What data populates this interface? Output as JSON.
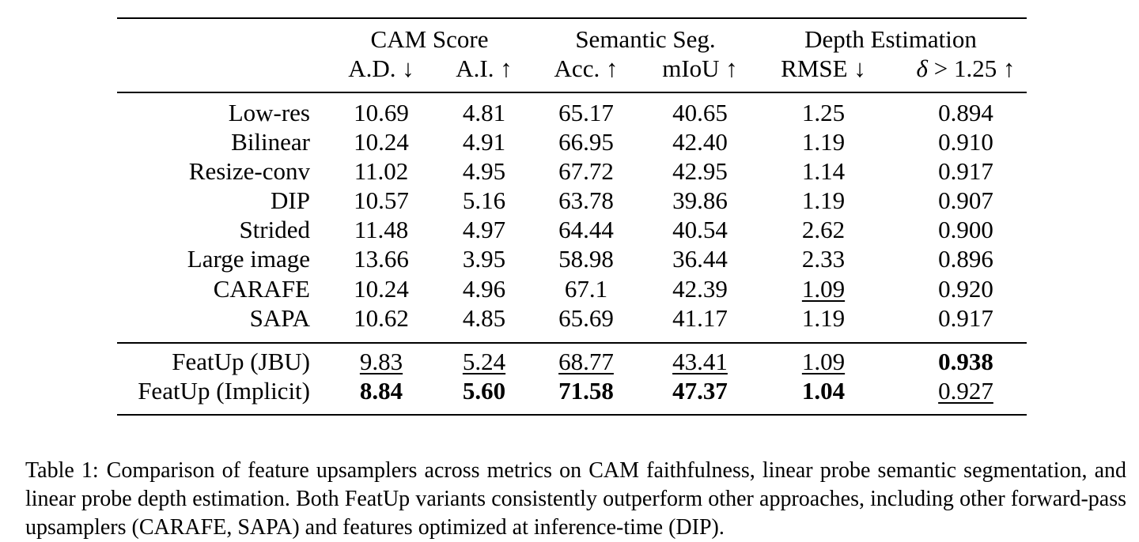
{
  "headers": {
    "groups": [
      "CAM Score",
      "Semantic Seg.",
      "Depth Estimation"
    ],
    "metrics": [
      "A.D. ↓",
      "A.I. ↑",
      "Acc. ↑",
      "mIoU ↑",
      "RMSE ↓",
      "> 1.25 ↑"
    ],
    "delta_symbol": "δ"
  },
  "rows": [
    {
      "method": "Low-res",
      "values": [
        "10.69",
        "4.81",
        "65.17",
        "40.65",
        "1.25",
        "0.894"
      ]
    },
    {
      "method": "Bilinear",
      "values": [
        "10.24",
        "4.91",
        "66.95",
        "42.40",
        "1.19",
        "0.910"
      ]
    },
    {
      "method": "Resize-conv",
      "values": [
        "11.02",
        "4.95",
        "67.72",
        "42.95",
        "1.14",
        "0.917"
      ]
    },
    {
      "method": "DIP",
      "values": [
        "10.57",
        "5.16",
        "63.78",
        "39.86",
        "1.19",
        "0.907"
      ]
    },
    {
      "method": "Strided",
      "values": [
        "11.48",
        "4.97",
        "64.44",
        "40.54",
        "2.62",
        "0.900"
      ]
    },
    {
      "method": "Large image",
      "values": [
        "13.66",
        "3.95",
        "58.98",
        "36.44",
        "2.33",
        "0.896"
      ]
    },
    {
      "method": "CARAFE",
      "values": [
        "10.24",
        "4.96",
        "67.1",
        "42.39",
        "1.09",
        "0.920"
      ]
    },
    {
      "method": "SAPA",
      "values": [
        "10.62",
        "4.85",
        "65.69",
        "41.17",
        "1.19",
        "0.917"
      ]
    },
    {
      "method": "FeatUp (JBU)",
      "values": [
        "9.83",
        "5.24",
        "68.77",
        "43.41",
        "1.09",
        "0.938"
      ]
    },
    {
      "method": "FeatUp (Implicit)",
      "values": [
        "8.84",
        "5.60",
        "71.58",
        "47.37",
        "1.04",
        "0.927"
      ]
    }
  ],
  "caption": {
    "label": "Table 1:",
    "text": "Comparison of feature upsamplers across metrics on CAM faithfulness, linear probe semantic segmentation, and linear probe depth estimation. Both FeatUp variants consistently outperform other approaches, including other forward-pass upsamplers (CARAFE, SAPA) and features optimized at inference-time (DIP)."
  }
}
